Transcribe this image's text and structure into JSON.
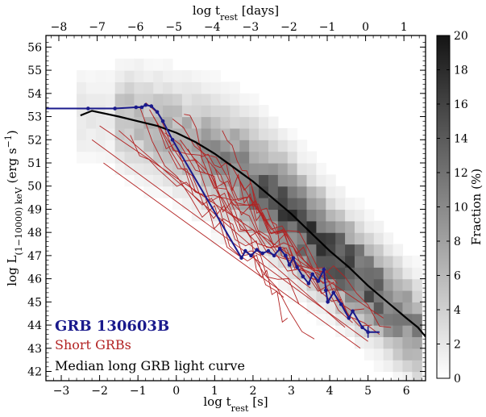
{
  "chart_data": {
    "type": "heatmap",
    "bottom_axis": {
      "label_main": "log t",
      "label_sub": "rest",
      "label_unit": " [s]",
      "range": [
        -3.4,
        6.5
      ],
      "ticks": [
        -3,
        -2,
        -1,
        0,
        1,
        2,
        3,
        4,
        5,
        6
      ],
      "tick_labels": [
        "−3",
        "−2",
        "−1",
        "0",
        "1",
        "2",
        "3",
        "4",
        "5",
        "6"
      ]
    },
    "top_axis": {
      "label_main": "log t",
      "label_sub": "rest",
      "label_unit": " [days]",
      "offset_from_seconds": 4.936,
      "ticks": [
        -8,
        -7,
        -6,
        -5,
        -4,
        -3,
        -2,
        -1,
        0,
        1
      ],
      "tick_labels": [
        "−8",
        "−7",
        "−6",
        "−5",
        "−4",
        "−3",
        "−2",
        "−1",
        "0",
        "1"
      ]
    },
    "left_axis": {
      "label_main": "log L",
      "label_sub": "(1−10000) keV",
      "label_unit": " (erg s",
      "label_exp": "−1",
      "label_close": ")",
      "range": [
        41.6,
        56.5
      ],
      "ticks": [
        42,
        43,
        44,
        45,
        46,
        47,
        48,
        49,
        50,
        51,
        52,
        53,
        54,
        55,
        56
      ],
      "tick_labels": [
        "42",
        "43",
        "44",
        "45",
        "46",
        "47",
        "48",
        "49",
        "50",
        "51",
        "52",
        "53",
        "54",
        "55",
        "56"
      ]
    },
    "colorbar": {
      "label": "Fraction (%)",
      "range": [
        0,
        20
      ],
      "ticks": [
        0,
        2,
        4,
        6,
        8,
        10,
        12,
        14,
        16,
        18,
        20
      ],
      "tick_labels": [
        "0",
        "2",
        "4",
        "6",
        "8",
        "10",
        "12",
        "14",
        "16",
        "18",
        "20"
      ],
      "cmap": "greys"
    },
    "heatmap": {
      "description_free": true,
      "ridge": [
        [
          -2.5,
          53.1
        ],
        [
          -1,
          52.8
        ],
        [
          0,
          52.2
        ],
        [
          1,
          51.3
        ],
        [
          2,
          50.2
        ],
        [
          3,
          48.8
        ],
        [
          4,
          47.2
        ],
        [
          5,
          45.8
        ],
        [
          6,
          44.2
        ]
      ],
      "bin_width_x": 0.25,
      "bin_height_y": 0.5,
      "peak_percent": 16
    },
    "series": [
      {
        "name": "GRB 130603B",
        "color": "#1a1a8c",
        "points": [
          [
            -3.4,
            53.35
          ],
          [
            -2.3,
            53.35
          ],
          [
            -1.6,
            53.35
          ],
          [
            -1.05,
            53.4
          ],
          [
            -0.9,
            53.4
          ],
          [
            -0.8,
            53.5
          ],
          [
            -0.65,
            53.45
          ],
          [
            -0.5,
            53.2
          ],
          [
            -0.35,
            52.8
          ],
          [
            -0.1,
            52.0
          ],
          [
            1.7,
            46.9
          ],
          [
            1.8,
            47.2
          ],
          [
            1.95,
            47.0
          ],
          [
            2.1,
            47.25
          ],
          [
            2.25,
            47.1
          ],
          [
            2.4,
            47.2
          ],
          [
            2.55,
            47.0
          ],
          [
            2.7,
            47.3
          ],
          [
            2.85,
            47.0
          ],
          [
            2.95,
            46.6
          ],
          [
            3.05,
            46.9
          ],
          [
            3.15,
            46.5
          ],
          [
            3.3,
            46.1
          ],
          [
            3.45,
            45.8
          ],
          [
            3.55,
            46.2
          ],
          [
            3.7,
            45.9
          ],
          [
            3.85,
            46.4
          ],
          [
            3.9,
            45.5
          ],
          [
            3.95,
            45.0
          ],
          [
            4.1,
            45.4
          ],
          [
            4.3,
            44.9
          ],
          [
            4.5,
            44.3
          ],
          [
            4.6,
            44.6
          ],
          [
            4.85,
            43.9
          ],
          [
            5.0,
            43.7
          ],
          [
            5.3,
            43.7
          ]
        ]
      },
      {
        "name": "Short GRBs",
        "color": "#b22222"
      },
      {
        "name": "Median long GRB light curve",
        "color": "#000000",
        "points": [
          [
            -2.5,
            53.05
          ],
          [
            -2.2,
            53.25
          ],
          [
            -1.5,
            53.0
          ],
          [
            -1.0,
            52.8
          ],
          [
            -0.5,
            52.6
          ],
          [
            0,
            52.3
          ],
          [
            0.5,
            51.9
          ],
          [
            1.0,
            51.4
          ],
          [
            1.5,
            50.8
          ],
          [
            2.0,
            50.2
          ],
          [
            2.5,
            49.5
          ],
          [
            3.0,
            48.8
          ],
          [
            3.5,
            48.0
          ],
          [
            4.0,
            47.2
          ],
          [
            4.5,
            46.5
          ],
          [
            5.0,
            45.7
          ],
          [
            5.5,
            45.0
          ],
          [
            6.0,
            44.3
          ],
          [
            6.3,
            43.9
          ],
          [
            6.5,
            43.5
          ]
        ]
      }
    ],
    "legend": {
      "placement": "bottom-left",
      "entries": [
        {
          "label": "GRB 130603B",
          "color": "#1a1a8c",
          "bold": true
        },
        {
          "label": "Short GRBs",
          "color": "#b22222",
          "bold": false
        },
        {
          "label": "Median long GRB light curve",
          "color": "#000000",
          "bold": false
        }
      ]
    }
  }
}
